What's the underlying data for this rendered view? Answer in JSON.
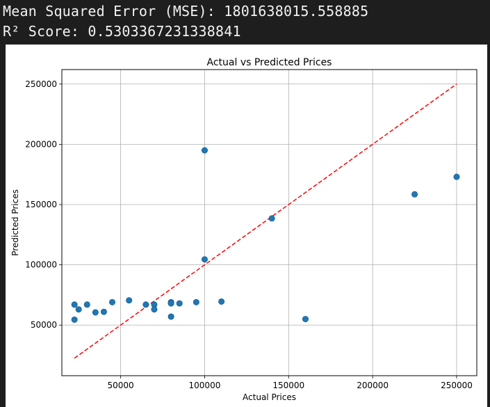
{
  "console": {
    "mse_line": "Mean Squared Error (MSE): 1801638015.558885",
    "r2_line": "R² Score: 0.5303367231338841"
  },
  "chart_data": {
    "type": "scatter",
    "title": "Actual vs Predicted Prices",
    "xlabel": "Actual Prices",
    "ylabel": "Predicted Prices",
    "xlim": [
      15000,
      262000
    ],
    "ylim": [
      8000,
      262000
    ],
    "xticks": [
      50000,
      100000,
      150000,
      200000,
      250000
    ],
    "yticks": [
      50000,
      100000,
      150000,
      200000,
      250000
    ],
    "grid": true,
    "colors": {
      "points": "#1f77b4",
      "reference_line": "#ff0000"
    },
    "reference_line": {
      "style": "dashed",
      "x": [
        22500,
        250000
      ],
      "y": [
        22500,
        250000
      ]
    },
    "points": [
      {
        "x": 22500,
        "y": 67000
      },
      {
        "x": 22500,
        "y": 54500
      },
      {
        "x": 25000,
        "y": 63000
      },
      {
        "x": 30000,
        "y": 67000
      },
      {
        "x": 35000,
        "y": 60500
      },
      {
        "x": 40000,
        "y": 61000
      },
      {
        "x": 45000,
        "y": 69000
      },
      {
        "x": 55000,
        "y": 70500
      },
      {
        "x": 65000,
        "y": 67000
      },
      {
        "x": 70000,
        "y": 67000
      },
      {
        "x": 70000,
        "y": 63000
      },
      {
        "x": 80000,
        "y": 69000
      },
      {
        "x": 80000,
        "y": 68000
      },
      {
        "x": 80000,
        "y": 57000
      },
      {
        "x": 85000,
        "y": 68000
      },
      {
        "x": 95000,
        "y": 69000
      },
      {
        "x": 100000,
        "y": 195000
      },
      {
        "x": 100000,
        "y": 104500
      },
      {
        "x": 110000,
        "y": 69500
      },
      {
        "x": 140000,
        "y": 138500
      },
      {
        "x": 160000,
        "y": 55000
      },
      {
        "x": 225000,
        "y": 158500
      },
      {
        "x": 250000,
        "y": 173000
      }
    ]
  }
}
